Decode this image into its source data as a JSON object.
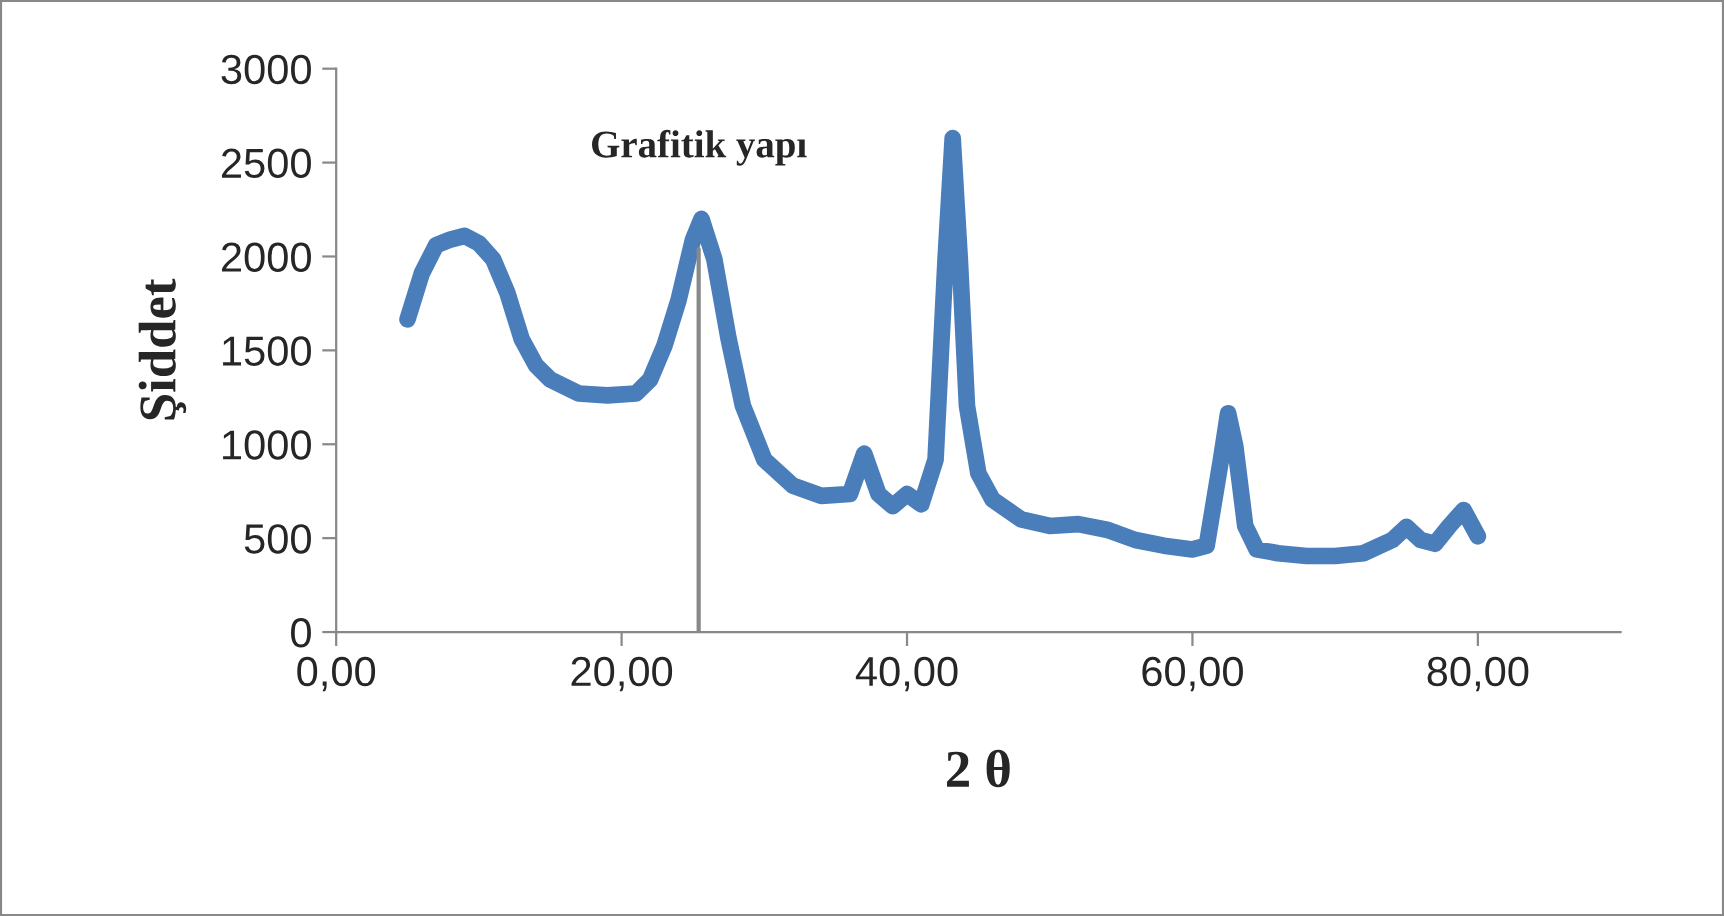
{
  "chart_data": {
    "type": "line",
    "xlabel": "2 θ",
    "ylabel": "Şiddet",
    "annotations": [
      {
        "text": "Grafitik yapı",
        "x": 25.4,
        "y": 2040
      }
    ],
    "x": [
      5,
      6,
      7,
      8,
      9,
      10,
      11,
      12,
      13,
      14,
      15,
      17,
      19,
      21,
      22,
      23,
      24,
      25,
      25.6,
      26.5,
      27.5,
      28.5,
      30,
      32,
      34,
      36,
      37,
      38,
      39,
      40,
      41,
      42,
      42.7,
      43.2,
      43.7,
      44.2,
      45,
      46,
      48,
      50,
      52,
      54,
      56,
      58,
      60,
      61,
      62,
      62.5,
      63,
      63.7,
      64.5,
      66,
      68,
      70,
      72,
      74,
      75,
      76,
      77,
      78,
      79,
      80
    ],
    "series": [
      {
        "color": "#4a7ebb",
        "values": [
          1665,
          1910,
          2060,
          2090,
          2110,
          2070,
          1985,
          1805,
          1560,
          1420,
          1345,
          1270,
          1260,
          1270,
          1345,
          1525,
          1770,
          2090,
          2200,
          1985,
          1560,
          1205,
          918,
          780,
          725,
          735,
          950,
          735,
          670,
          735,
          680,
          918,
          1985,
          2630,
          1985,
          1205,
          845,
          705,
          600,
          565,
          575,
          545,
          490,
          460,
          440,
          460,
          918,
          1165,
          990,
          565,
          440,
          420,
          405,
          405,
          420,
          490,
          560,
          490,
          470,
          565,
          650,
          510
        ]
      },
      {
        "type": "line",
        "color": "#888888",
        "x": [
          25.4,
          25.4
        ],
        "values": [
          0,
          2040
        ]
      }
    ],
    "xlim": [
      0,
      90
    ],
    "xticks": [
      {
        "value": 0,
        "label": "0,00"
      },
      {
        "value": 20,
        "label": "20,00"
      },
      {
        "value": 40,
        "label": "40,00"
      },
      {
        "value": 60,
        "label": "60,00"
      },
      {
        "value": 80,
        "label": "80,00"
      }
    ],
    "ylim": [
      0,
      3000
    ],
    "yticks": [
      0,
      500,
      1000,
      1500,
      2000,
      2500,
      3000
    ],
    "grid": false,
    "legend": false,
    "marker": "none",
    "line_style": "solid"
  }
}
